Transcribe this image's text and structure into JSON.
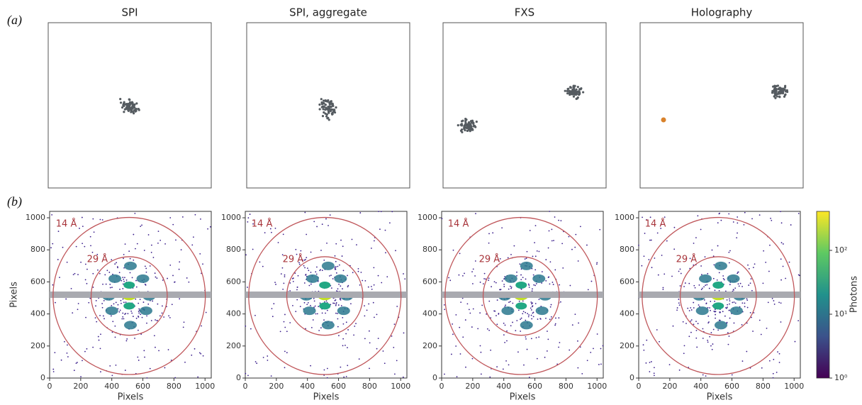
{
  "panel_a": {
    "label": "(a)",
    "titles": [
      "SPI",
      "SPI, aggregate",
      "FXS",
      "Holography"
    ]
  },
  "panel_b": {
    "label": "(b)",
    "xlabel": "Pixels",
    "ylabel": "Pixels",
    "ticks": [
      "0",
      "200",
      "400",
      "600",
      "800",
      "1000"
    ],
    "ring_labels": [
      "14 Å",
      "29 Å"
    ],
    "colorbar": {
      "label": "Photons",
      "ticks": [
        "10⁰",
        "10¹",
        "10²"
      ]
    }
  }
}
